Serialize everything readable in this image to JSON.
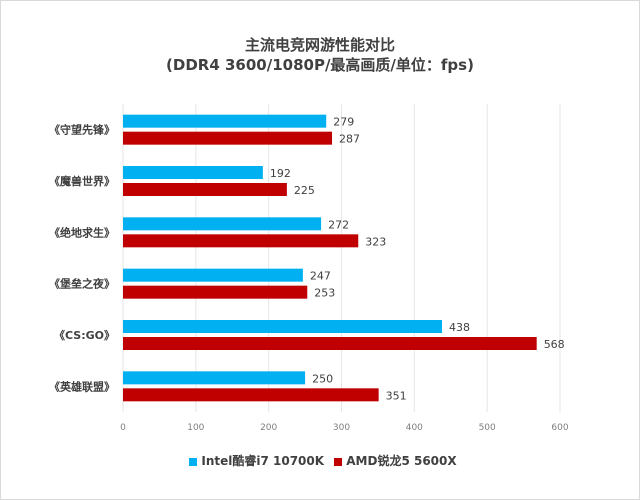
{
  "chart_data": {
    "type": "bar",
    "orientation": "horizontal",
    "title": "主流电竞网游性能对比",
    "subtitle": "(DDR4 3600/1080P/最高画质/单位：fps)",
    "categories": [
      "《守望先锋》",
      "《魔兽世界》",
      "《绝地求生》",
      "《堡垒之夜》",
      "《CS:GO》",
      "《英雄联盟》"
    ],
    "series": [
      {
        "name": "Intel酷睿i7 10700K",
        "color": "#00b0f0",
        "values": [
          279,
          192,
          272,
          247,
          438,
          250
        ]
      },
      {
        "name": "AMD锐龙5 5600X",
        "color": "#c00000",
        "values": [
          287,
          225,
          323,
          253,
          568,
          351
        ]
      }
    ],
    "xlim": [
      0,
      600
    ],
    "xticks": [
      0,
      100,
      200,
      300,
      400,
      500,
      600
    ],
    "grid": true,
    "legend": "bottom"
  }
}
